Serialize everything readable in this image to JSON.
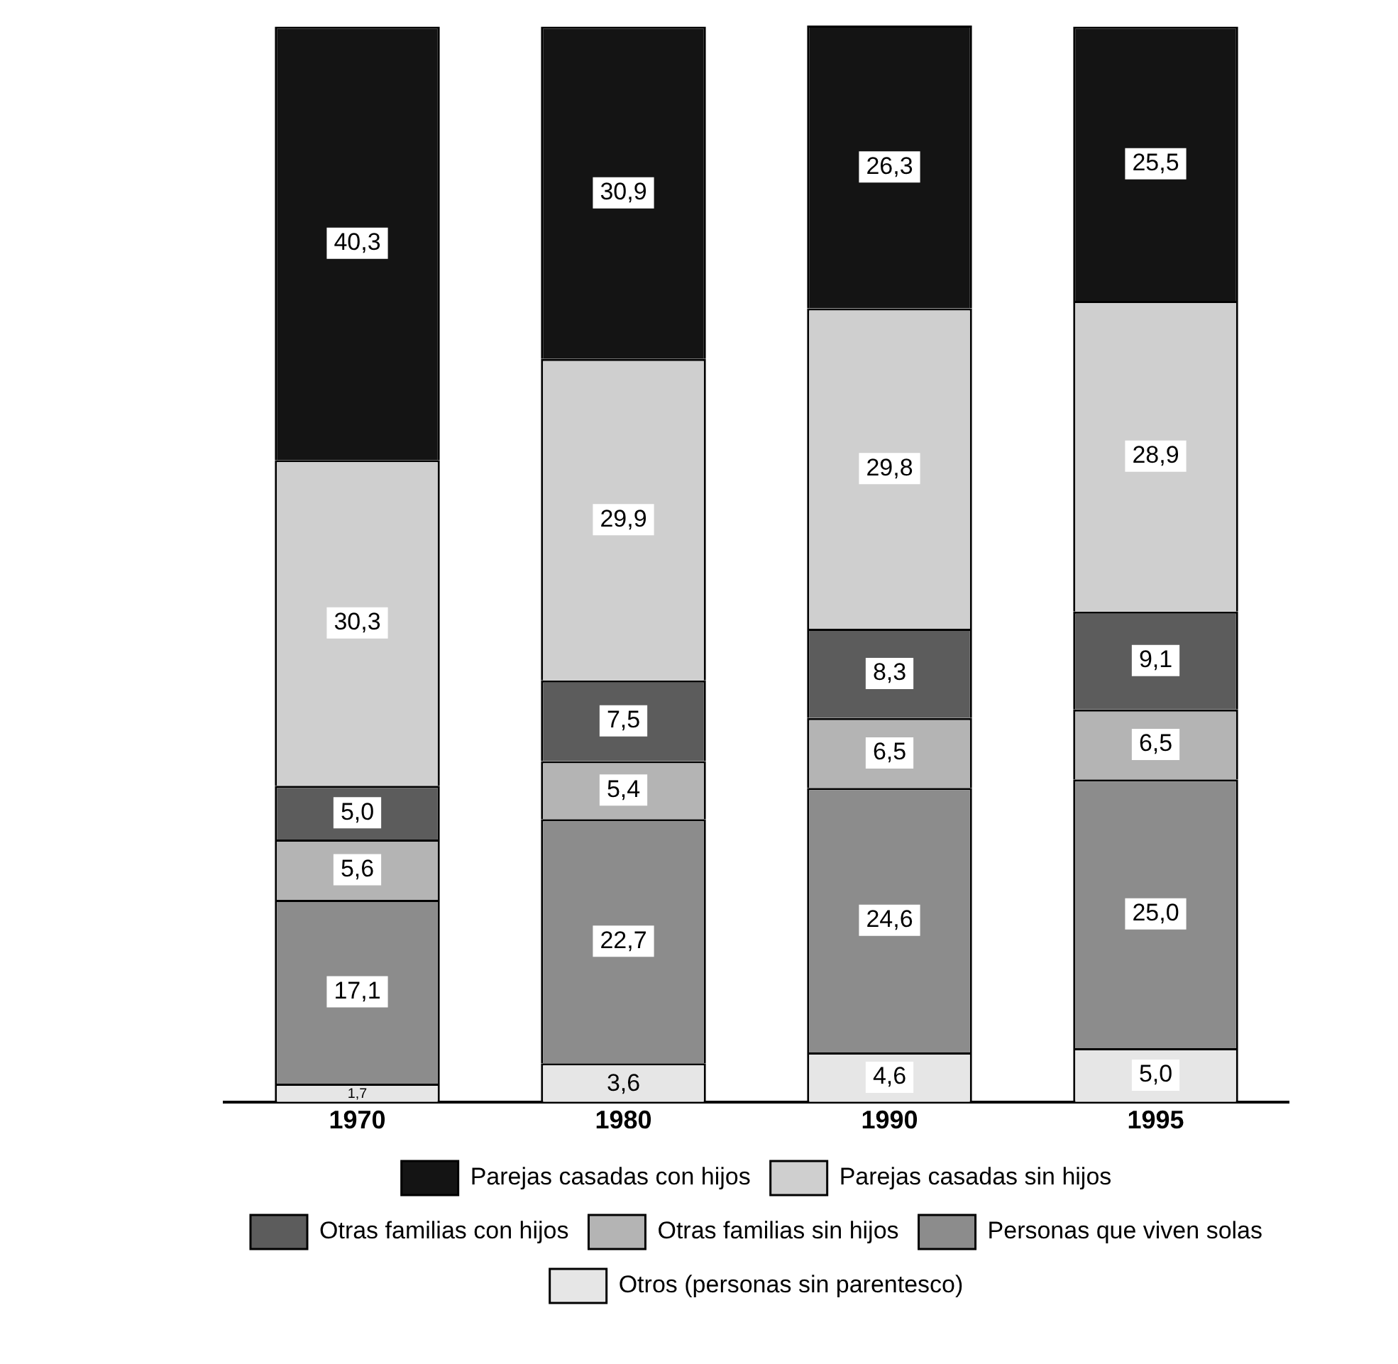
{
  "chart_data": {
    "type": "bar",
    "stacked": true,
    "categories": [
      "1970",
      "1980",
      "1990",
      "1995"
    ],
    "legend": "bottom",
    "grid": false,
    "series": [
      {
        "name": "Otros (personas sin parentesco)",
        "color": "#e6e6e6",
        "values": [
          1.7,
          3.6,
          4.6,
          5.0
        ],
        "value_labels": [
          "1,7",
          "3,6",
          "4,6",
          "5,0"
        ]
      },
      {
        "name": "Personas que viven solas",
        "color": "#8c8c8c",
        "values": [
          17.1,
          22.7,
          24.6,
          25.0
        ],
        "value_labels": [
          "17,1",
          "22,7",
          "24,6",
          "25,0"
        ]
      },
      {
        "name": "Otras familias sin hijos",
        "color": "#b4b4b4",
        "values": [
          5.6,
          5.4,
          6.5,
          6.5
        ],
        "value_labels": [
          "5,6",
          "5,4",
          "6,5",
          "6,5"
        ]
      },
      {
        "name": "Otras familias con hijos",
        "color": "#5c5c5c",
        "values": [
          5.0,
          7.5,
          8.3,
          9.1
        ],
        "value_labels": [
          "5,0",
          "7,5",
          "8,3",
          "9,1"
        ]
      },
      {
        "name": "Parejas casadas sin hijos",
        "color": "#cfcfcf",
        "values": [
          30.3,
          29.9,
          29.8,
          28.9
        ],
        "value_labels": [
          "30,3",
          "29,9",
          "29,8",
          "28,9"
        ]
      },
      {
        "name": "Parejas casadas con hijos",
        "color": "#141414",
        "values": [
          40.3,
          30.9,
          26.3,
          25.5
        ],
        "value_labels": [
          "40,3",
          "30,9",
          "26,3",
          "25,5"
        ]
      }
    ]
  }
}
